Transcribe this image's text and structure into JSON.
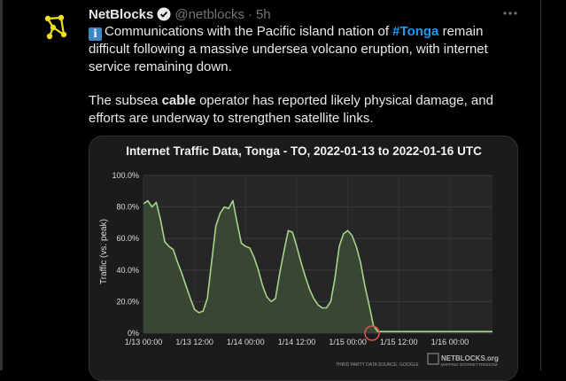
{
  "tweet": {
    "author_name": "NetBlocks",
    "author_handle": "@netblocks",
    "separator": "·",
    "timestamp": "5h",
    "info_emoji": "i",
    "line1_prefix": "Communications with the Pacific island nation of ",
    "hashtag": "#Tonga",
    "line1_suffix": " remain difficult following a massive undersea volcano eruption, with internet service remaining down.",
    "line2_prefix": "The subsea ",
    "line2_bold": "cable",
    "line2_suffix": " operator has reported likely physical damage, and efforts are underway to strengthen satellite links."
  },
  "icons": {
    "avatar": "netblocks-logo-icon",
    "verified": "verified-badge-icon",
    "more": "more-options-icon"
  },
  "colors": {
    "hashtag": "#1d9bf0",
    "muted": "#71767b",
    "avatar_mark": "#f0e11a",
    "chart_line": "#a7d48c",
    "chart_fill": "#3c4a35",
    "outage_marker": "#d9534f"
  },
  "chart_data": {
    "type": "area",
    "title": "Internet Traffic Data, Tonga - TO, 2022-01-13 to 2022-01-16 UTC",
    "ylabel": "Traffic (vs. peak)",
    "xlabel": "",
    "ylim": [
      0,
      100
    ],
    "y_ticks": [
      "100.0%",
      "80.0%",
      "60.0%",
      "40.0%",
      "20.0%",
      "0%"
    ],
    "y_tick_values": [
      100,
      80,
      60,
      40,
      20,
      0
    ],
    "x_tick_labels": [
      "1/13 00:00",
      "1/13 12:00",
      "1/14 00:00",
      "1/14 12:00",
      "1/15 00:00",
      "1/15 12:00",
      "1/16 00:00"
    ],
    "x_tick_hours": [
      0,
      12,
      24,
      36,
      48,
      60,
      72
    ],
    "x_range_hours": [
      0,
      82
    ],
    "grid": true,
    "series": [
      {
        "x_hours": [
          0,
          1,
          2,
          3,
          4,
          5,
          6,
          7,
          8,
          9,
          10,
          11,
          12,
          13,
          14,
          15,
          16,
          17,
          18,
          19,
          20,
          21,
          22,
          23,
          24,
          25,
          26,
          27,
          28,
          29,
          30,
          31,
          32,
          33,
          34,
          35,
          36,
          37,
          38,
          39,
          40,
          41,
          42,
          43,
          44,
          45,
          46,
          47,
          48,
          49,
          50,
          51,
          52,
          53,
          54,
          55,
          56,
          57,
          58,
          59,
          60,
          61,
          62,
          63,
          64,
          65,
          66,
          67,
          68,
          69,
          70,
          71,
          72,
          73,
          74,
          75,
          76,
          77,
          78,
          79,
          80,
          81,
          82
        ],
        "values": [
          82,
          84,
          80,
          83,
          72,
          58,
          55,
          53,
          45,
          38,
          30,
          22,
          15,
          13,
          14,
          22,
          45,
          68,
          76,
          80,
          79,
          84,
          70,
          57,
          55,
          54,
          48,
          40,
          30,
          23,
          20,
          22,
          38,
          52,
          65,
          64,
          55,
          45,
          36,
          28,
          22,
          18,
          16,
          16,
          20,
          35,
          55,
          63,
          65,
          62,
          55,
          45,
          30,
          18,
          5,
          1,
          1,
          1,
          1,
          1,
          1,
          1,
          1,
          1,
          1,
          1,
          1,
          1,
          1,
          1,
          1,
          1,
          1,
          1,
          1,
          1,
          1,
          1,
          1,
          1,
          1,
          1,
          1
        ]
      }
    ],
    "annotations": [
      "outage-marker"
    ],
    "watermark_brand": "NETBLOCKS.org",
    "watermark_tagline": "MAPPING INTERNET FREEDOM",
    "source_note": "THIRD PARTY DATA SOURCE: GOOGLE"
  }
}
